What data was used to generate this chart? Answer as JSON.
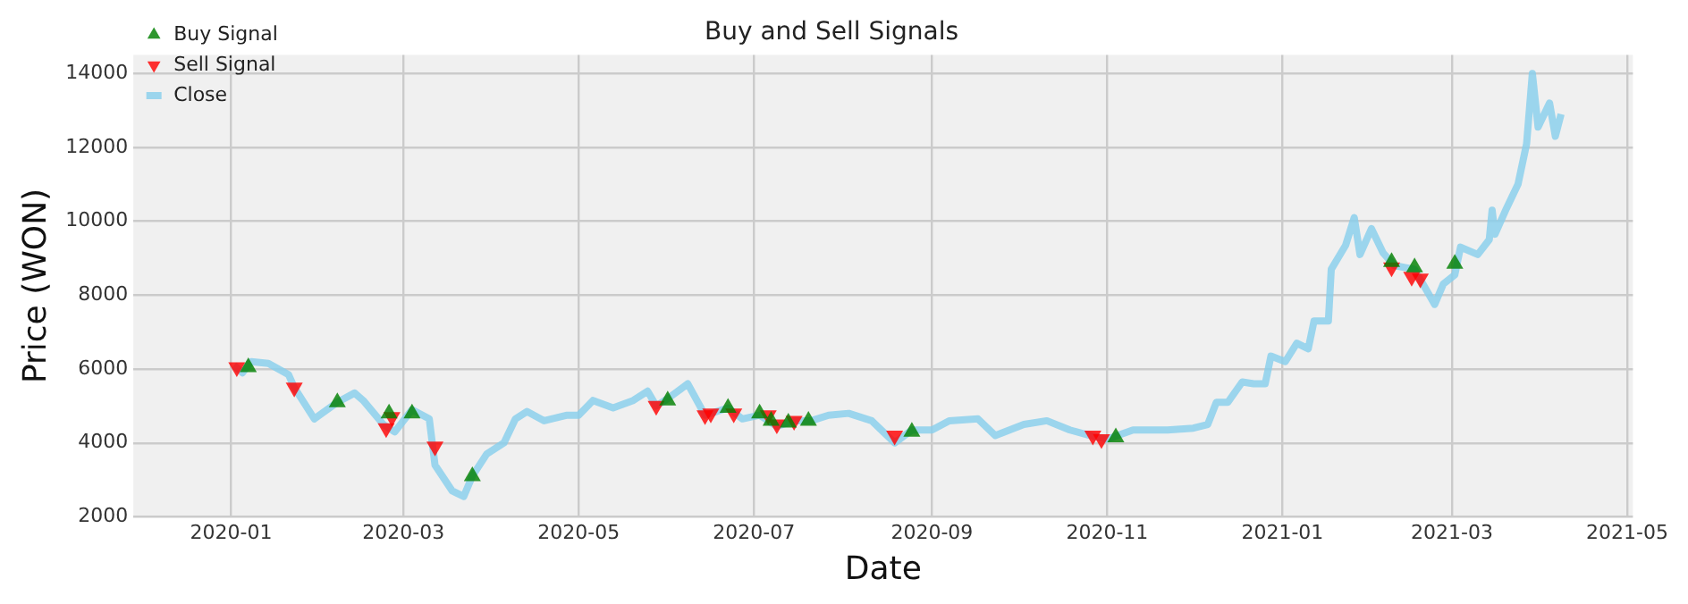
{
  "chart_data": {
    "type": "line",
    "title": "Buy and Sell Signals",
    "xlabel": "Date",
    "ylabel": "Price (WON)",
    "xlim": [
      "2019-11-28",
      "2021-05-03"
    ],
    "xticks": [
      "2020-01",
      "2020-03",
      "2020-05",
      "2020-07",
      "2020-09",
      "2020-11",
      "2021-01",
      "2021-03",
      "2021-05"
    ],
    "ylim": [
      2000,
      14500
    ],
    "yticks": [
      2000,
      4000,
      6000,
      8000,
      10000,
      12000,
      14000
    ],
    "grid": true,
    "legend": "top left",
    "series": [
      {
        "name": "Close",
        "type": "line",
        "color": "#87ceeb",
        "marker": "none",
        "x": [
          "2020-01-02",
          "2020-01-05",
          "2020-01-08",
          "2020-01-14",
          "2020-01-21",
          "2020-01-23",
          "2020-01-30",
          "2020-02-07",
          "2020-02-13",
          "2020-02-16",
          "2020-02-23",
          "2020-02-27",
          "2020-03-04",
          "2020-03-10",
          "2020-03-12",
          "2020-03-18",
          "2020-03-22",
          "2020-03-25",
          "2020-03-30",
          "2020-04-05",
          "2020-04-09",
          "2020-04-13",
          "2020-04-19",
          "2020-04-27",
          "2020-05-01",
          "2020-05-06",
          "2020-05-13",
          "2020-05-20",
          "2020-05-25",
          "2020-05-28",
          "2020-06-01",
          "2020-06-08",
          "2020-06-14",
          "2020-06-22",
          "2020-06-27",
          "2020-07-03",
          "2020-07-09",
          "2020-07-15",
          "2020-07-21",
          "2020-07-27",
          "2020-08-03",
          "2020-08-11",
          "2020-08-19",
          "2020-08-25",
          "2020-09-01",
          "2020-09-07",
          "2020-09-17",
          "2020-09-23",
          "2020-10-03",
          "2020-10-11",
          "2020-10-19",
          "2020-10-26",
          "2020-11-01",
          "2020-11-10",
          "2020-11-22",
          "2020-12-01",
          "2020-12-06",
          "2020-12-09",
          "2020-12-13",
          "2020-12-18",
          "2020-12-22",
          "2020-12-26",
          "2020-12-28",
          "2021-01-02",
          "2021-01-06",
          "2021-01-10",
          "2021-01-12",
          "2021-01-17",
          "2021-01-18",
          "2021-01-23",
          "2021-01-26",
          "2021-01-28",
          "2021-02-01",
          "2021-02-05",
          "2021-02-09",
          "2021-02-16",
          "2021-02-23",
          "2021-02-26",
          "2021-03-02",
          "2021-03-04",
          "2021-03-10",
          "2021-03-14",
          "2021-03-15",
          "2021-03-16",
          "2021-03-20",
          "2021-03-24",
          "2021-03-27",
          "2021-03-29",
          "2021-03-31",
          "2021-04-04",
          "2021-04-06",
          "2021-04-08"
        ],
        "values": [
          6100,
          5900,
          6200,
          6150,
          5850,
          5500,
          4650,
          5100,
          5350,
          5150,
          4500,
          4300,
          4900,
          4650,
          3400,
          2700,
          2550,
          3100,
          3700,
          4000,
          4650,
          4850,
          4600,
          4750,
          4750,
          5150,
          4950,
          5150,
          5400,
          5000,
          5200,
          5600,
          4750,
          4950,
          4650,
          4750,
          4450,
          4600,
          4600,
          4750,
          4800,
          4600,
          4000,
          4350,
          4350,
          4600,
          4650,
          4200,
          4500,
          4600,
          4350,
          4200,
          4100,
          4350,
          4350,
          4400,
          4500,
          5100,
          5100,
          5650,
          5600,
          5600,
          6350,
          6200,
          6700,
          6550,
          7300,
          7300,
          8700,
          9350,
          10100,
          9100,
          9800,
          9150,
          8800,
          8700,
          7750,
          8300,
          8550,
          9300,
          9100,
          9500,
          10300,
          9650,
          10350,
          11000,
          12100,
          14000,
          12550,
          13200,
          12300,
          12900
        ]
      },
      {
        "name": "Buy Signal",
        "type": "scatter",
        "color": "#008000",
        "marker": "triangle",
        "x": [
          "2020-01-07",
          "2020-02-07",
          "2020-02-25",
          "2020-03-04",
          "2020-03-25",
          "2020-06-01",
          "2020-06-22",
          "2020-07-03",
          "2020-07-07",
          "2020-07-13",
          "2020-07-20",
          "2020-08-25",
          "2020-11-04",
          "2021-02-08",
          "2021-02-16",
          "2021-03-02"
        ],
        "values": [
          6050,
          5100,
          4800,
          4800,
          3100,
          5150,
          4950,
          4800,
          4600,
          4550,
          4600,
          4300,
          4150,
          8900,
          8750,
          8850
        ]
      },
      {
        "name": "Sell Signal",
        "type": "scatter",
        "color": "#ff0000",
        "marker": "triangle-down",
        "x": [
          "2020-01-03",
          "2020-01-23",
          "2020-02-24",
          "2020-02-26",
          "2020-03-12",
          "2020-05-28",
          "2020-06-14",
          "2020-06-16",
          "2020-06-24",
          "2020-07-06",
          "2020-07-09",
          "2020-07-15",
          "2020-08-19",
          "2020-10-27",
          "2020-10-30",
          "2021-02-08",
          "2021-02-15",
          "2021-02-18"
        ],
        "values": [
          6050,
          5500,
          4400,
          4700,
          3900,
          5000,
          4750,
          4800,
          4800,
          4750,
          4500,
          4600,
          4200,
          4200,
          4100,
          8750,
          8500,
          8450
        ]
      }
    ]
  }
}
